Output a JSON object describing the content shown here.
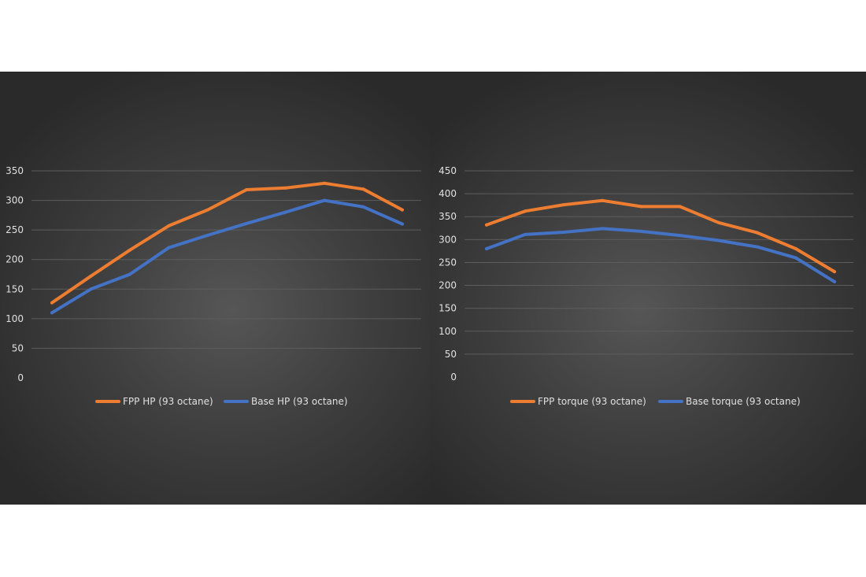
{
  "colors": {
    "fpp": "#ED7D31",
    "base": "#4472C4",
    "background": "#3a3a3a"
  },
  "chart_data": [
    {
      "type": "line",
      "title": "",
      "xlabel": "",
      "ylabel": "",
      "ylim": [
        0,
        350
      ],
      "y_ticks": [
        0,
        50,
        100,
        150,
        200,
        250,
        300,
        350
      ],
      "x": [
        1,
        2,
        3,
        4,
        5,
        6,
        7,
        8,
        9,
        10
      ],
      "grid": true,
      "legend_position": "bottom",
      "series": [
        {
          "name": "FPP HP (93 octane)",
          "color": "#ED7D31",
          "values": [
            127,
            172,
            216,
            257,
            284,
            318,
            321,
            329,
            319,
            284
          ]
        },
        {
          "name": "Base HP (93 octane)",
          "color": "#4472C4",
          "values": [
            110,
            150,
            175,
            220,
            241,
            261,
            280,
            300,
            289,
            260
          ]
        }
      ]
    },
    {
      "type": "line",
      "title": "",
      "xlabel": "",
      "ylabel": "",
      "ylim": [
        0,
        450
      ],
      "y_ticks": [
        0,
        50,
        100,
        150,
        200,
        250,
        300,
        350,
        400,
        450
      ],
      "x": [
        1,
        2,
        3,
        4,
        5,
        6,
        7,
        8,
        9,
        10
      ],
      "grid": true,
      "legend_position": "bottom",
      "series": [
        {
          "name": "FPP torque (93 octane)",
          "color": "#ED7D31",
          "values": [
            332,
            362,
            376,
            385,
            372,
            372,
            337,
            315,
            280,
            230
          ]
        },
        {
          "name": "Base torque (93 octane)",
          "color": "#4472C4",
          "values": [
            280,
            311,
            316,
            324,
            318,
            309,
            298,
            284,
            260,
            208
          ]
        }
      ]
    }
  ]
}
